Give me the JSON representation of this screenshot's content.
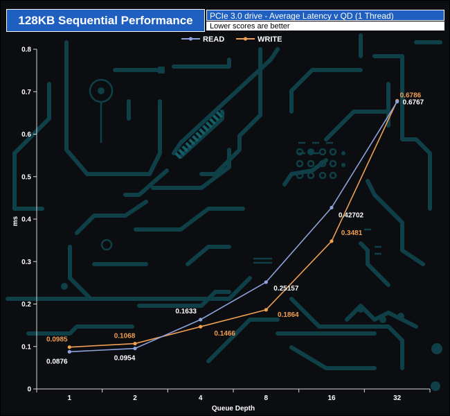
{
  "header": {
    "title": "128KB Sequential Performance",
    "subtitle": "PCIe 3.0 drive - Average Latency v QD (1 Thread)",
    "note": "Lower scores are better"
  },
  "chart_data": {
    "type": "line",
    "title": "128KB Sequential Performance",
    "subtitle": "PCIe 3.0 drive - Average Latency v QD (1 Thread)",
    "xlabel": "Queue Depth",
    "ylabel": "ms",
    "categories": [
      "1",
      "2",
      "4",
      "8",
      "16",
      "32"
    ],
    "ylim": [
      0,
      0.8
    ],
    "yticks": [
      "0",
      "0.1",
      "0.2",
      "0.3",
      "0.4",
      "0.5",
      "0.6",
      "0.7",
      "0.8"
    ],
    "legend_position": "top-center",
    "grid": false,
    "series": [
      {
        "name": "READ",
        "color": "#8ea3dc",
        "values": [
          0.0876,
          0.0954,
          0.1633,
          0.25157,
          0.42702,
          0.6767
        ],
        "labels": [
          "0.0876",
          "0.0954",
          "0.1633",
          "0.25157",
          "0.42702",
          "0.6767"
        ],
        "label_color": "#ffffff"
      },
      {
        "name": "WRITE",
        "color": "#f0a050",
        "values": [
          0.0985,
          0.1068,
          0.1466,
          0.1864,
          0.3481,
          0.6786
        ],
        "labels": [
          "0.0985",
          "0.1068",
          "0.1466",
          "0.1864",
          "0.3481",
          "0.6786"
        ],
        "label_color": "#f0a050"
      }
    ]
  }
}
